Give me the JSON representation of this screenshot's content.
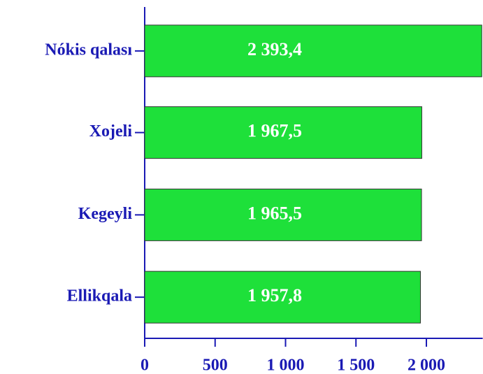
{
  "chart_data": {
    "type": "bar",
    "orientation": "horizontal",
    "categories": [
      "Nókis qalası",
      "Xojeli",
      "Kegeyli",
      "Ellikqala"
    ],
    "values": [
      2393.4,
      1967.5,
      1965.5,
      1957.8
    ],
    "value_labels": [
      "2 393,4",
      "1 967,5",
      "1 965,5",
      "1 957,8"
    ],
    "color": "#1ee03a",
    "xlim": [
      0,
      2400
    ],
    "xticks": [
      0,
      500,
      {
        "value": 1000,
        "label": "1 000"
      },
      {
        "value": 1500,
        "label": "1 500"
      },
      {
        "value": 2000,
        "label": "2 000"
      }
    ]
  }
}
